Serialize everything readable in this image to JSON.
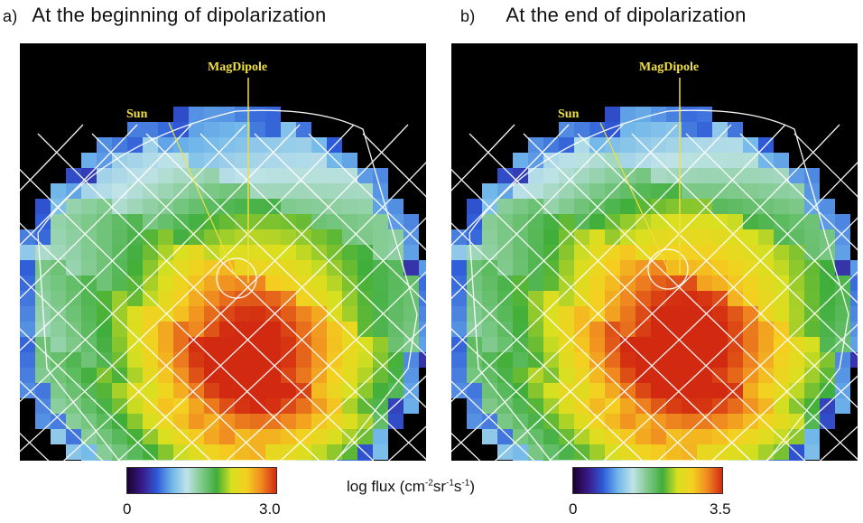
{
  "panels": [
    {
      "tag": "a)",
      "title": "At the beginning of dipolarization",
      "label_sun": "Sun",
      "label_dipole": "MagDipole",
      "colorbar": {
        "min": "0",
        "max": "3.0"
      }
    },
    {
      "tag": "b)",
      "title": "At the end of dipolarization",
      "label_sun": "Sun",
      "label_dipole": "MagDipole",
      "colorbar": {
        "min": "0",
        "max": "3.5"
      }
    }
  ],
  "units": {
    "prefix": "log flux (cm",
    "e1": "-2",
    "mid1": "sr",
    "e2": "-1",
    "mid2": "s",
    "e3": "-1",
    "suffix": ")"
  },
  "colors": {
    "background": "#000000",
    "grid": "#ffffff",
    "label": "#f0e040",
    "scale": [
      "#1a0030",
      "#3a1a8a",
      "#2e5ad8",
      "#6fb6ea",
      "#bfe3e8",
      "#7ec98a",
      "#3fae3a",
      "#d8e020",
      "#f5d020",
      "#f08a20",
      "#d22a10"
    ]
  }
}
